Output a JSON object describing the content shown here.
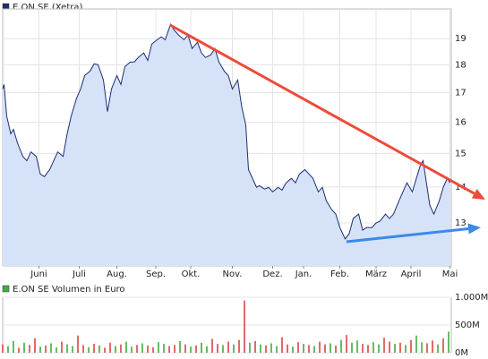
{
  "chart_data": [
    {
      "type": "area",
      "yscale": "log",
      "grid": true,
      "xlim": [
        0,
        334
      ],
      "ylim": [
        11.9,
        20.2
      ],
      "yticks": [
        13,
        14,
        15,
        16,
        17,
        18,
        19
      ],
      "xticks": [
        {
          "value": 27,
          "label": "Juni"
        },
        {
          "value": 57,
          "label": "Juli"
        },
        {
          "value": 85,
          "label": "Aug."
        },
        {
          "value": 114,
          "label": "Sep."
        },
        {
          "value": 140,
          "label": "Okt."
        },
        {
          "value": 171,
          "label": "Nov."
        },
        {
          "value": 201,
          "label": "Dez."
        },
        {
          "value": 224,
          "label": "Jan."
        },
        {
          "value": 251,
          "label": "Feb."
        },
        {
          "value": 278,
          "label": "März"
        },
        {
          "value": 304,
          "label": "April"
        },
        {
          "value": 333,
          "label": "Mai"
        }
      ],
      "x": [
        0,
        1,
        3,
        6,
        8,
        11,
        15,
        18,
        21,
        25,
        28,
        31,
        35,
        38,
        41,
        45,
        48,
        51,
        55,
        58,
        61,
        65,
        68,
        71,
        75,
        78,
        81,
        85,
        88,
        91,
        95,
        98,
        101,
        105,
        108,
        111,
        115,
        118,
        121,
        125,
        128,
        131,
        135,
        138,
        141,
        145,
        148,
        151,
        155,
        158,
        161,
        165,
        168,
        171,
        175,
        178,
        181,
        183,
        186,
        189,
        191,
        195,
        198,
        201,
        205,
        208,
        211,
        215,
        218,
        221,
        225,
        228,
        231,
        235,
        238,
        241,
        245,
        248,
        251,
        255,
        258,
        261,
        265,
        268,
        271,
        275,
        278,
        281,
        285,
        288,
        291,
        295,
        298,
        301,
        305,
        308,
        311,
        313,
        315,
        318,
        321,
        325,
        328,
        331,
        333
      ],
      "series": [
        {
          "name": "E.ON SE (Xetra)",
          "color": "#1c2f73",
          "fill": "#d6e2f8",
          "values": [
            17.13,
            17.29,
            16.2,
            15.62,
            15.76,
            15.33,
            14.91,
            14.78,
            15.05,
            14.91,
            14.38,
            14.3,
            14.51,
            14.78,
            15.05,
            14.91,
            15.62,
            16.2,
            16.81,
            17.13,
            17.61,
            17.77,
            18.04,
            18.01,
            17.45,
            16.35,
            17.13,
            17.61,
            17.29,
            17.94,
            18.11,
            18.11,
            18.28,
            18.45,
            18.17,
            18.79,
            18.96,
            19.07,
            18.96,
            19.57,
            19.32,
            19.14,
            18.96,
            19.14,
            18.62,
            18.86,
            18.45,
            18.28,
            18.38,
            18.62,
            18.11,
            17.77,
            17.61,
            17.13,
            17.45,
            16.51,
            15.9,
            14.51,
            14.25,
            13.99,
            14.04,
            13.94,
            13.99,
            13.86,
            13.99,
            13.91,
            14.12,
            14.25,
            14.12,
            14.38,
            14.51,
            14.38,
            14.25,
            13.86,
            13.99,
            13.6,
            13.36,
            13.24,
            12.88,
            12.58,
            12.72,
            13.12,
            13.24,
            12.81,
            12.88,
            12.88,
            13.0,
            13.05,
            13.24,
            13.12,
            13.24,
            13.6,
            13.86,
            14.12,
            13.86,
            14.25,
            14.64,
            14.78,
            14.25,
            13.48,
            13.24,
            13.6,
            13.99,
            14.25,
            14.12
          ]
        }
      ]
    },
    {
      "type": "bar",
      "grid": true,
      "xlim": [
        0,
        334
      ],
      "ylim": [
        0,
        1000
      ],
      "yticks": [
        {
          "value": 0,
          "label": "0M"
        },
        {
          "value": 500,
          "label": "500M"
        },
        {
          "value": 1000,
          "label": "1.000M"
        }
      ],
      "x": [
        0,
        4,
        8,
        12,
        16,
        20,
        24,
        28,
        32,
        36,
        40,
        44,
        48,
        52,
        56,
        60,
        64,
        68,
        72,
        76,
        80,
        84,
        88,
        92,
        96,
        100,
        104,
        108,
        112,
        116,
        120,
        124,
        128,
        132,
        136,
        140,
        144,
        148,
        152,
        156,
        160,
        164,
        168,
        172,
        176,
        180,
        184,
        188,
        192,
        196,
        200,
        204,
        208,
        212,
        216,
        220,
        224,
        228,
        232,
        236,
        240,
        244,
        248,
        252,
        256,
        260,
        264,
        268,
        272,
        276,
        280,
        284,
        288,
        292,
        296,
        300,
        304,
        308,
        312,
        316,
        320,
        324,
        328,
        332
      ],
      "series": [
        {
          "name": "E.ON SE Volumen in Euro",
          "color": "#44aa44",
          "values": [
            150,
            120,
            210,
            90,
            180,
            140,
            260,
            110,
            130,
            170,
            95,
            200,
            150,
            120,
            310,
            140,
            100,
            160,
            130,
            90,
            180,
            120,
            150,
            200,
            110,
            140,
            170,
            130,
            100,
            190,
            160,
            120,
            140,
            210,
            150,
            110,
            130,
            180,
            120,
            250,
            160,
            140,
            200,
            150,
            230,
            940,
            180,
            210,
            150,
            130,
            170,
            120,
            280,
            150,
            110,
            190,
            160,
            140,
            120,
            200,
            150,
            170,
            130,
            230,
            320,
            180,
            220,
            160,
            140,
            190,
            150,
            270,
            200,
            160,
            180,
            140,
            230,
            310,
            190,
            170,
            220,
            150,
            260,
            380
          ],
          "colors": [
            "#dd4444",
            "#44aa44",
            "#44aa44",
            "#dd4444",
            "#44aa44",
            "#dd4444",
            "#dd4444",
            "#44aa44",
            "#dd4444",
            "#44aa44",
            "#44aa44",
            "#dd4444",
            "#44aa44",
            "#44aa44",
            "#dd4444",
            "#dd4444",
            "#44aa44",
            "#dd4444",
            "#44aa44",
            "#dd4444",
            "#dd4444",
            "#44aa44",
            "#dd4444",
            "#44aa44",
            "#44aa44",
            "#dd4444",
            "#44aa44",
            "#dd4444",
            "#dd4444",
            "#44aa44",
            "#44aa44",
            "#dd4444",
            "#dd4444",
            "#44aa44",
            "#dd4444",
            "#44aa44",
            "#dd4444",
            "#44aa44",
            "#44aa44",
            "#dd4444",
            "#dd4444",
            "#44aa44",
            "#dd4444",
            "#44aa44",
            "#dd4444",
            "#dd4444",
            "#44aa44",
            "#dd4444",
            "#44aa44",
            "#dd4444",
            "#44aa44",
            "#44aa44",
            "#dd4444",
            "#dd4444",
            "#44aa44",
            "#dd4444",
            "#44aa44",
            "#dd4444",
            "#44aa44",
            "#dd4444",
            "#dd4444",
            "#44aa44",
            "#dd4444",
            "#44aa44",
            "#dd4444",
            "#44aa44",
            "#44aa44",
            "#dd4444",
            "#dd4444",
            "#44aa44",
            "#44aa44",
            "#dd4444",
            "#dd4444",
            "#44aa44",
            "#dd4444",
            "#44aa44",
            "#dd4444",
            "#44aa44",
            "#44aa44",
            "#dd4444",
            "#dd4444",
            "#44aa44",
            "#dd4444",
            "#44aa44"
          ]
        }
      ]
    }
  ]
}
